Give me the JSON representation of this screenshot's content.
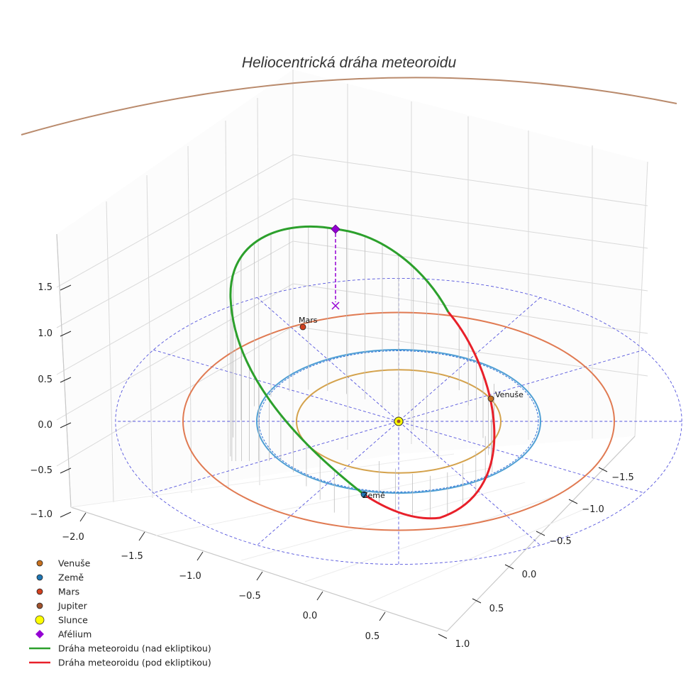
{
  "chart_data": {
    "type": "line",
    "projection": "3d",
    "title": "Heliocentrická dráha meteoroidu",
    "axes": {
      "x": {
        "ticks": [
          -2.0,
          -1.5,
          -1.0,
          -0.5,
          0.0,
          0.5
        ],
        "tick_labels": [
          "−2.0",
          "−1.5",
          "−1.0",
          "−0.5",
          "0.0",
          "0.5"
        ]
      },
      "y": {
        "ticks": [
          -1.5,
          -1.0,
          -0.5,
          0.0,
          0.5,
          1.0
        ],
        "tick_labels": [
          "−1.5",
          "−1.0",
          "−0.5",
          "0.0",
          "0.5",
          "1.0"
        ]
      },
      "z": {
        "ticks": [
          -1.0,
          -0.5,
          0.0,
          0.5,
          1.0,
          1.5
        ],
        "tick_labels": [
          "−1.0",
          "−0.5",
          "0.0",
          "0.5",
          "1.0",
          "1.5"
        ]
      }
    },
    "planet_orbits": [
      {
        "name": "Venuše",
        "radius_au": 0.72,
        "color": "#d4a24c"
      },
      {
        "name": "Země",
        "radius_au": 1.0,
        "color": "#4f9fd4"
      },
      {
        "name": "Mars",
        "radius_au": 1.52,
        "color": "#e07a52"
      },
      {
        "name": "Jupiter",
        "radius_au": 5.2,
        "color": "#b98a6c"
      }
    ],
    "planets": [
      {
        "name": "Venuše",
        "label": "Venuše",
        "color": "#c7701f",
        "x": 0.12,
        "y": -0.71,
        "z": 0.0
      },
      {
        "name": "Země",
        "label": "Země",
        "color": "#1f77b4",
        "x": 0.75,
        "y": 0.66,
        "z": 0.0
      },
      {
        "name": "Mars",
        "label": "Mars",
        "color": "#d2401f",
        "x": -1.35,
        "y": 0.7,
        "z": 0.0
      },
      {
        "name": "Jupiter",
        "label": "",
        "color": "#a0522d",
        "x": 0.0,
        "y": 0.0,
        "z": 0.0
      }
    ],
    "sun": {
      "name": "Slunce",
      "color": "#ffff00",
      "x": 0.0,
      "y": 0.0,
      "z": 0.0
    },
    "aphelion": {
      "name": "Afélium",
      "color": "#9400d3",
      "x": -1.35,
      "y": -0.8,
      "z": 1.5
    },
    "meteoroid_orbit": {
      "above_ecliptic": {
        "name": "Dráha meteoroidu (nad ekliptikou)",
        "color": "#2ca02c"
      },
      "below_ecliptic": {
        "name": "Dráha meteoroidu (pod ekliptikou)",
        "color": "#e8202a"
      },
      "perihelion_au": 1.0,
      "aphelion_au": 1.97,
      "inclination_deg": 50
    },
    "reference_grid": {
      "radius_au": 2.0,
      "color": "#5555dd"
    },
    "legend": {
      "position": "bottom-left",
      "entries": [
        {
          "label": "Venuše",
          "color": "#c7701f",
          "marker": "circle"
        },
        {
          "label": "Země",
          "color": "#1f77b4",
          "marker": "circle"
        },
        {
          "label": "Mars",
          "color": "#d2401f",
          "marker": "circle"
        },
        {
          "label": "Jupiter",
          "color": "#a0522d",
          "marker": "circle"
        },
        {
          "label": "Slunce",
          "color": "#ffff00",
          "marker": "circle-large"
        },
        {
          "label": "Afélium",
          "color": "#9400d3",
          "marker": "diamond"
        },
        {
          "label": "Dráha meteoroidu (nad ekliptikou)",
          "color": "#2ca02c",
          "marker": "line"
        },
        {
          "label": "Dráha meteoroidu (pod ekliptikou)",
          "color": "#e8202a",
          "marker": "line"
        }
      ]
    }
  }
}
